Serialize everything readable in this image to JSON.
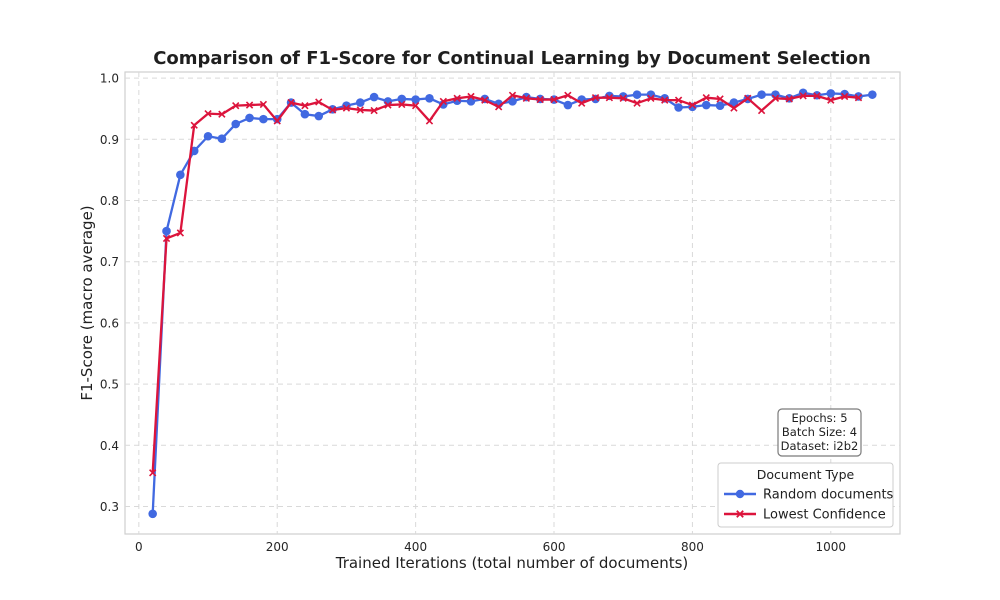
{
  "chart_data": {
    "type": "line",
    "title": "Comparison of F1-Score for Continual Learning by Document Selection",
    "xlabel": "Trained Iterations (total number of documents)",
    "ylabel": "F1-Score (macro average)",
    "xlim": [
      -20,
      1100
    ],
    "ylim": [
      0.255,
      1.01
    ],
    "xticks": [
      0,
      200,
      400,
      600,
      800,
      1000
    ],
    "yticks": [
      0.3,
      0.4,
      0.5,
      0.6,
      0.7,
      0.8,
      0.9,
      1.0
    ],
    "xtick_labels": [
      "0",
      "200",
      "400",
      "600",
      "800",
      "1000"
    ],
    "ytick_labels": [
      "0.3",
      "0.4",
      "0.5",
      "0.6",
      "0.7",
      "0.8",
      "0.9",
      "1.0"
    ],
    "grid": true,
    "legend_position": "lower-right",
    "legend_title": "Document Type",
    "annotation": [
      "Epochs: 5",
      "Batch Size: 4",
      "Dataset: i2b2"
    ],
    "series": [
      {
        "name": "Random documents",
        "color": "#4169e1",
        "marker": "circle",
        "points": [
          [
            20,
            0.288
          ],
          [
            40,
            0.75
          ],
          [
            60,
            0.842
          ],
          [
            80,
            0.881
          ],
          [
            100,
            0.905
          ],
          [
            120,
            0.901
          ],
          [
            140,
            0.925
          ],
          [
            160,
            0.935
          ],
          [
            180,
            0.933
          ],
          [
            200,
            0.933
          ],
          [
            220,
            0.96
          ],
          [
            240,
            0.941
          ],
          [
            260,
            0.938
          ],
          [
            280,
            0.949
          ],
          [
            300,
            0.955
          ],
          [
            320,
            0.96
          ],
          [
            340,
            0.969
          ],
          [
            360,
            0.962
          ],
          [
            380,
            0.966
          ],
          [
            400,
            0.965
          ],
          [
            420,
            0.967
          ],
          [
            440,
            0.957
          ],
          [
            460,
            0.963
          ],
          [
            480,
            0.962
          ],
          [
            500,
            0.966
          ],
          [
            520,
            0.958
          ],
          [
            540,
            0.962
          ],
          [
            560,
            0.969
          ],
          [
            580,
            0.966
          ],
          [
            600,
            0.965
          ],
          [
            620,
            0.956
          ],
          [
            640,
            0.965
          ],
          [
            660,
            0.966
          ],
          [
            680,
            0.971
          ],
          [
            700,
            0.97
          ],
          [
            720,
            0.973
          ],
          [
            740,
            0.973
          ],
          [
            760,
            0.967
          ],
          [
            780,
            0.952
          ],
          [
            800,
            0.953
          ],
          [
            820,
            0.956
          ],
          [
            840,
            0.955
          ],
          [
            860,
            0.96
          ],
          [
            880,
            0.966
          ],
          [
            900,
            0.973
          ],
          [
            920,
            0.973
          ],
          [
            940,
            0.967
          ],
          [
            960,
            0.976
          ],
          [
            980,
            0.972
          ],
          [
            1000,
            0.975
          ],
          [
            1020,
            0.974
          ],
          [
            1040,
            0.97
          ],
          [
            1060,
            0.973
          ]
        ]
      },
      {
        "name": "Lowest Confidence",
        "color": "#dc143c",
        "marker": "x",
        "points": [
          [
            20,
            0.355
          ],
          [
            40,
            0.738
          ],
          [
            60,
            0.747
          ],
          [
            80,
            0.923
          ],
          [
            100,
            0.942
          ],
          [
            120,
            0.941
          ],
          [
            140,
            0.955
          ],
          [
            160,
            0.956
          ],
          [
            180,
            0.957
          ],
          [
            200,
            0.93
          ],
          [
            220,
            0.96
          ],
          [
            240,
            0.955
          ],
          [
            260,
            0.961
          ],
          [
            280,
            0.948
          ],
          [
            300,
            0.951
          ],
          [
            320,
            0.948
          ],
          [
            340,
            0.947
          ],
          [
            360,
            0.956
          ],
          [
            380,
            0.957
          ],
          [
            400,
            0.955
          ],
          [
            420,
            0.93
          ],
          [
            440,
            0.962
          ],
          [
            460,
            0.967
          ],
          [
            480,
            0.97
          ],
          [
            500,
            0.964
          ],
          [
            520,
            0.953
          ],
          [
            540,
            0.972
          ],
          [
            560,
            0.967
          ],
          [
            580,
            0.965
          ],
          [
            600,
            0.965
          ],
          [
            620,
            0.972
          ],
          [
            640,
            0.959
          ],
          [
            660,
            0.968
          ],
          [
            680,
            0.968
          ],
          [
            700,
            0.967
          ],
          [
            720,
            0.959
          ],
          [
            740,
            0.967
          ],
          [
            760,
            0.964
          ],
          [
            780,
            0.964
          ],
          [
            800,
            0.956
          ],
          [
            820,
            0.968
          ],
          [
            840,
            0.966
          ],
          [
            860,
            0.951
          ],
          [
            880,
            0.967
          ],
          [
            900,
            0.947
          ],
          [
            920,
            0.967
          ],
          [
            940,
            0.966
          ],
          [
            960,
            0.971
          ],
          [
            980,
            0.971
          ],
          [
            1000,
            0.964
          ],
          [
            1020,
            0.97
          ],
          [
            1040,
            0.968
          ]
        ]
      }
    ]
  }
}
